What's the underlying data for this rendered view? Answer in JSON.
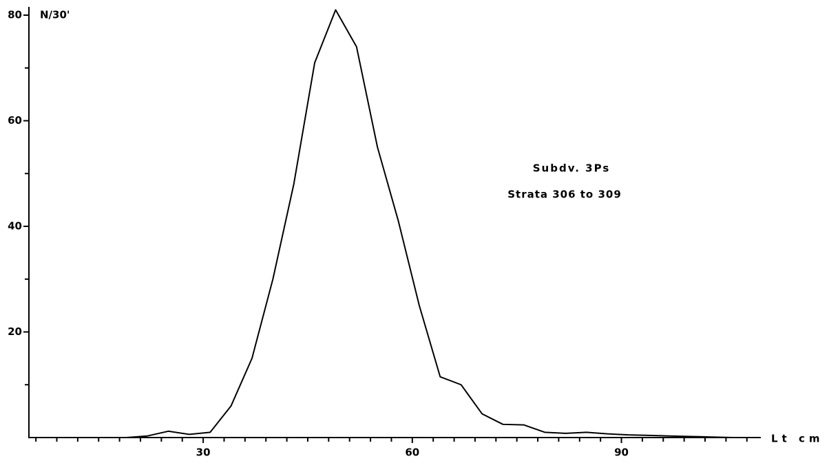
{
  "chart_data": {
    "type": "line",
    "y_label": "N/30'",
    "x_label": "Lt cm",
    "annotations": [
      "Subdv. 3Ps",
      "Strata 306 to 309"
    ],
    "x": [
      10,
      13,
      16,
      19,
      22,
      25,
      28,
      31,
      34,
      37,
      40,
      43,
      46,
      49,
      52,
      55,
      58,
      61,
      64,
      67,
      70,
      73,
      76,
      79,
      82,
      85,
      88,
      91,
      94,
      97,
      100,
      103,
      106,
      109
    ],
    "series": [
      {
        "color": "#000000",
        "values": [
          0,
          0,
          0,
          0,
          0.3,
          1.2,
          0.6,
          1,
          6,
          15,
          30,
          48,
          71,
          81,
          74,
          55,
          41,
          25,
          11.5,
          10,
          4.5,
          2.5,
          2.4,
          1,
          0.8,
          1,
          0.7,
          0.5,
          0.4,
          0.3,
          0.2,
          0.1,
          0,
          0
        ]
      }
    ],
    "xlim": [
      5,
      110
    ],
    "ylim": [
      0,
      80
    ],
    "xticks": [
      30,
      60,
      90
    ],
    "yticks": [
      20,
      40,
      60,
      80
    ],
    "xticks_minor": [
      6,
      9,
      12,
      15,
      18,
      21,
      24,
      27,
      33,
      36,
      39,
      42,
      45,
      48,
      51,
      54,
      57,
      63,
      66,
      69,
      72,
      75,
      78,
      81,
      84,
      87,
      93,
      96,
      99,
      102,
      105,
      108
    ],
    "yticks_minor": [
      10,
      30,
      50,
      70
    ],
    "grid": false
  }
}
